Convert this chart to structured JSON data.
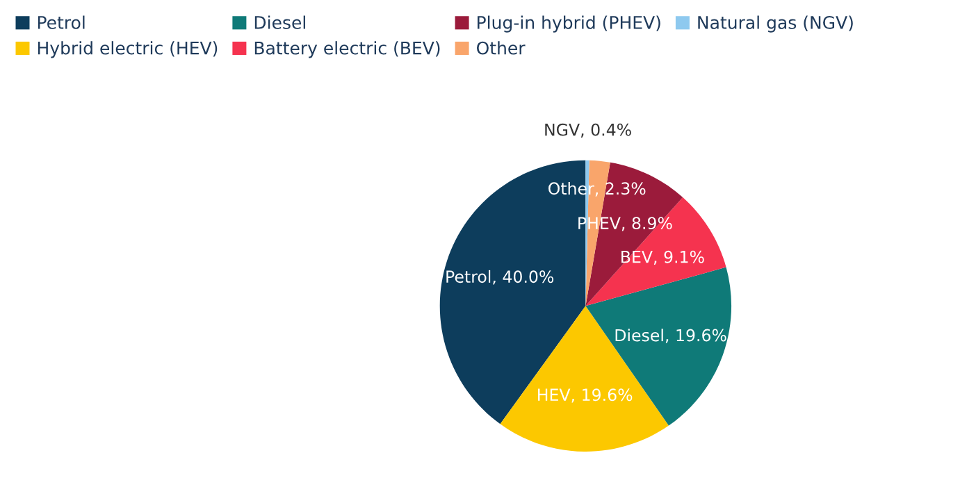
{
  "chart_data": {
    "type": "pie",
    "categories": [
      "Petrol",
      "Hybrid electric (HEV)",
      "Diesel",
      "Battery electric (BEV)",
      "Plug-in hybrid (PHEV)",
      "Other",
      "Natural gas (NGV)"
    ],
    "values": [
      40.0,
      19.6,
      19.6,
      9.1,
      8.9,
      2.3,
      0.4
    ],
    "colors": [
      "#0d3d5c",
      "#fcc800",
      "#0f7a78",
      "#f5334f",
      "#9b1b3b",
      "#f9a56b",
      "#8ec9ef"
    ],
    "value_labels": [
      "Petrol, 40.0%",
      "HEV, 19.6%",
      "Diesel, 19.6%",
      "BEV, 9.1%",
      "PHEV, 8.9%",
      "Other, 2.3%",
      "NGV, 0.4%"
    ],
    "legend": "top left"
  }
}
